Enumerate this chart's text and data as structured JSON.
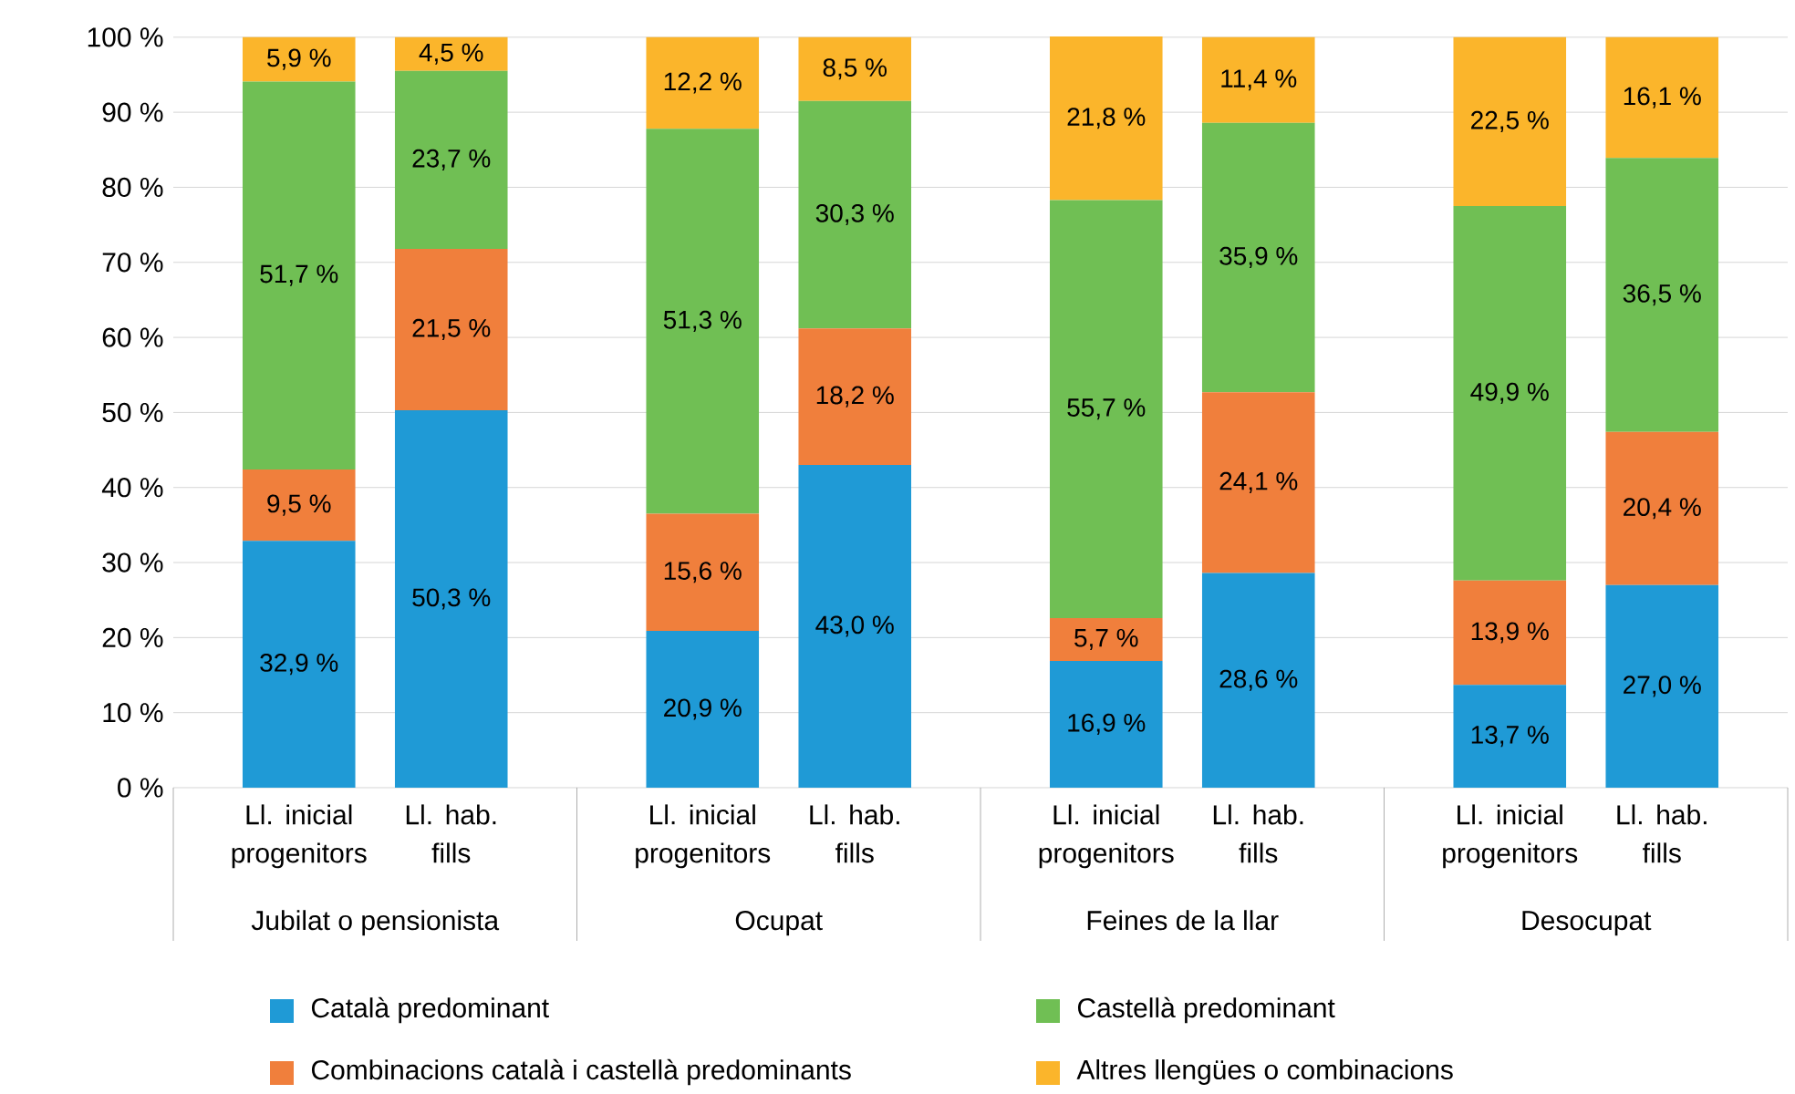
{
  "chart_data": {
    "type": "bar",
    "stacked": true,
    "categories": [
      "Ll. inicial progenitors",
      "Ll. hab. fills",
      "Ll. inicial progenitors",
      "Ll. hab. fills",
      "Ll. inicial progenitors",
      "Ll. hab. fills",
      "Ll. inicial progenitors",
      "Ll. hab. fills"
    ],
    "annotations": [
      "Jubilat o pensionista",
      "Ocupat",
      "Feines de la llar",
      "Desocupat"
    ],
    "series": [
      {
        "name": "Català predominant",
        "color": "#1f9ad6",
        "values": [
          32.9,
          50.3,
          20.9,
          43.0,
          16.9,
          28.6,
          13.7,
          27.0
        ],
        "value_labels": [
          "32,9 %",
          "50,3 %",
          "20,9 %",
          "43,0 %",
          "16,9 %",
          "28,6 %",
          "13,7 %",
          "27,0 %"
        ]
      },
      {
        "name": "Combinacions català i castellà predominants",
        "color": "#f07f3c",
        "values": [
          9.5,
          21.5,
          15.6,
          18.2,
          5.7,
          24.1,
          13.9,
          20.4
        ],
        "value_labels": [
          "9,5 %",
          "21,5 %",
          "15,6 %",
          "18,2 %",
          "5,7 %",
          "24,1 %",
          "13,9 %",
          "20,4 %"
        ]
      },
      {
        "name": "Castellà predominant",
        "color": "#70bf54",
        "values": [
          51.7,
          23.7,
          51.3,
          30.3,
          55.7,
          35.9,
          49.9,
          36.5
        ],
        "value_labels": [
          "51,7 %",
          "23,7 %",
          "51,3 %",
          "30,3 %",
          "55,7 %",
          "35,9 %",
          "49,9 %",
          "36,5 %"
        ]
      },
      {
        "name": "Altres llengües o combinacions",
        "color": "#fbb52b",
        "values": [
          5.9,
          4.5,
          12.2,
          8.5,
          21.8,
          11.4,
          22.5,
          16.1
        ],
        "value_labels": [
          "5,9 %",
          "4,5 %",
          "12,2 %",
          "8,5 %",
          "21,8 %",
          "11,4 %",
          "22,5 %",
          "16,1 %"
        ]
      }
    ],
    "ylim": [
      0,
      100.1
    ],
    "yticks": [
      {
        "value": 0,
        "label": "0 %"
      },
      {
        "value": 10,
        "label": "10 %"
      },
      {
        "value": 20,
        "label": "20 %"
      },
      {
        "value": 30,
        "label": "30 %"
      },
      {
        "value": 40,
        "label": "40 %"
      },
      {
        "value": 50,
        "label": "50 %"
      },
      {
        "value": 60,
        "label": "60 %"
      },
      {
        "value": 70,
        "label": "70 %"
      },
      {
        "value": 80,
        "label": "80 %"
      },
      {
        "value": 90,
        "label": "90 %"
      },
      {
        "value": 100,
        "label": "100 %"
      }
    ],
    "grid": "y",
    "legend": "bottom"
  }
}
